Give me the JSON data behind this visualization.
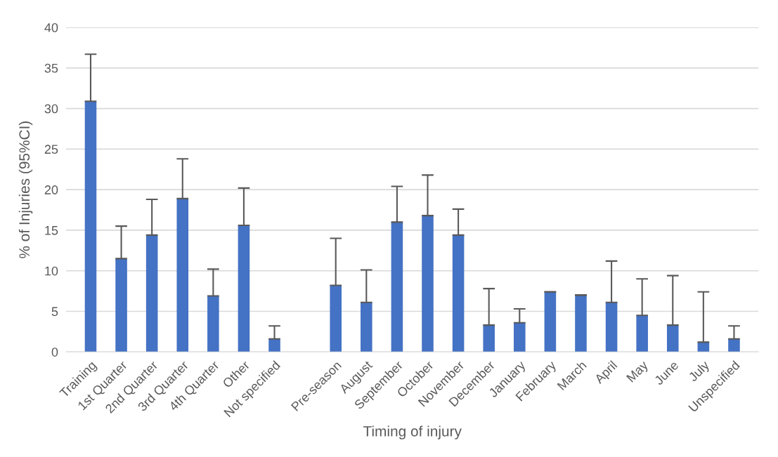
{
  "chart_data": {
    "type": "bar",
    "xlabel": "Timing of injury",
    "ylabel": "% of Injuries (95%CI)",
    "categories": [
      "Training",
      "1st Quarter",
      "2nd Quarter",
      "3rd Quarter",
      "4th Quarter",
      "Other",
      "Not specified",
      null,
      "Pre-season",
      "August",
      "September",
      "October",
      "November",
      "December",
      "January",
      "February",
      "March",
      "April",
      "May",
      "June",
      "July",
      "Unspecified"
    ],
    "values": [
      30.9,
      11.5,
      14.4,
      18.9,
      6.9,
      15.6,
      1.6,
      null,
      8.2,
      6.1,
      16.0,
      16.8,
      14.4,
      3.3,
      3.6,
      7.4,
      7.0,
      6.1,
      4.5,
      3.3,
      1.2,
      1.6
    ],
    "errors": [
      [
        30.9,
        36.7
      ],
      [
        11.5,
        15.5
      ],
      [
        14.4,
        18.8
      ],
      [
        18.9,
        23.8
      ],
      [
        6.9,
        10.2
      ],
      [
        15.6,
        20.2
      ],
      [
        1.6,
        3.2
      ],
      null,
      [
        8.2,
        14.0
      ],
      [
        6.1,
        10.1
      ],
      [
        16.0,
        20.4
      ],
      [
        16.8,
        21.8
      ],
      [
        14.4,
        17.6
      ],
      [
        3.3,
        7.8
      ],
      [
        3.6,
        5.3
      ],
      [
        7.4,
        7.4
      ],
      [
        7.0,
        7.0
      ],
      [
        6.1,
        11.2
      ],
      [
        4.5,
        9.0
      ],
      [
        3.3,
        9.4
      ],
      [
        1.2,
        7.4
      ],
      [
        1.6,
        3.2
      ]
    ],
    "color": "#4472c4",
    "ylim": [
      0,
      40
    ],
    "yticks": [
      0,
      5,
      10,
      15,
      20,
      25,
      30,
      35,
      40
    ],
    "grid": "y",
    "legend": false
  }
}
